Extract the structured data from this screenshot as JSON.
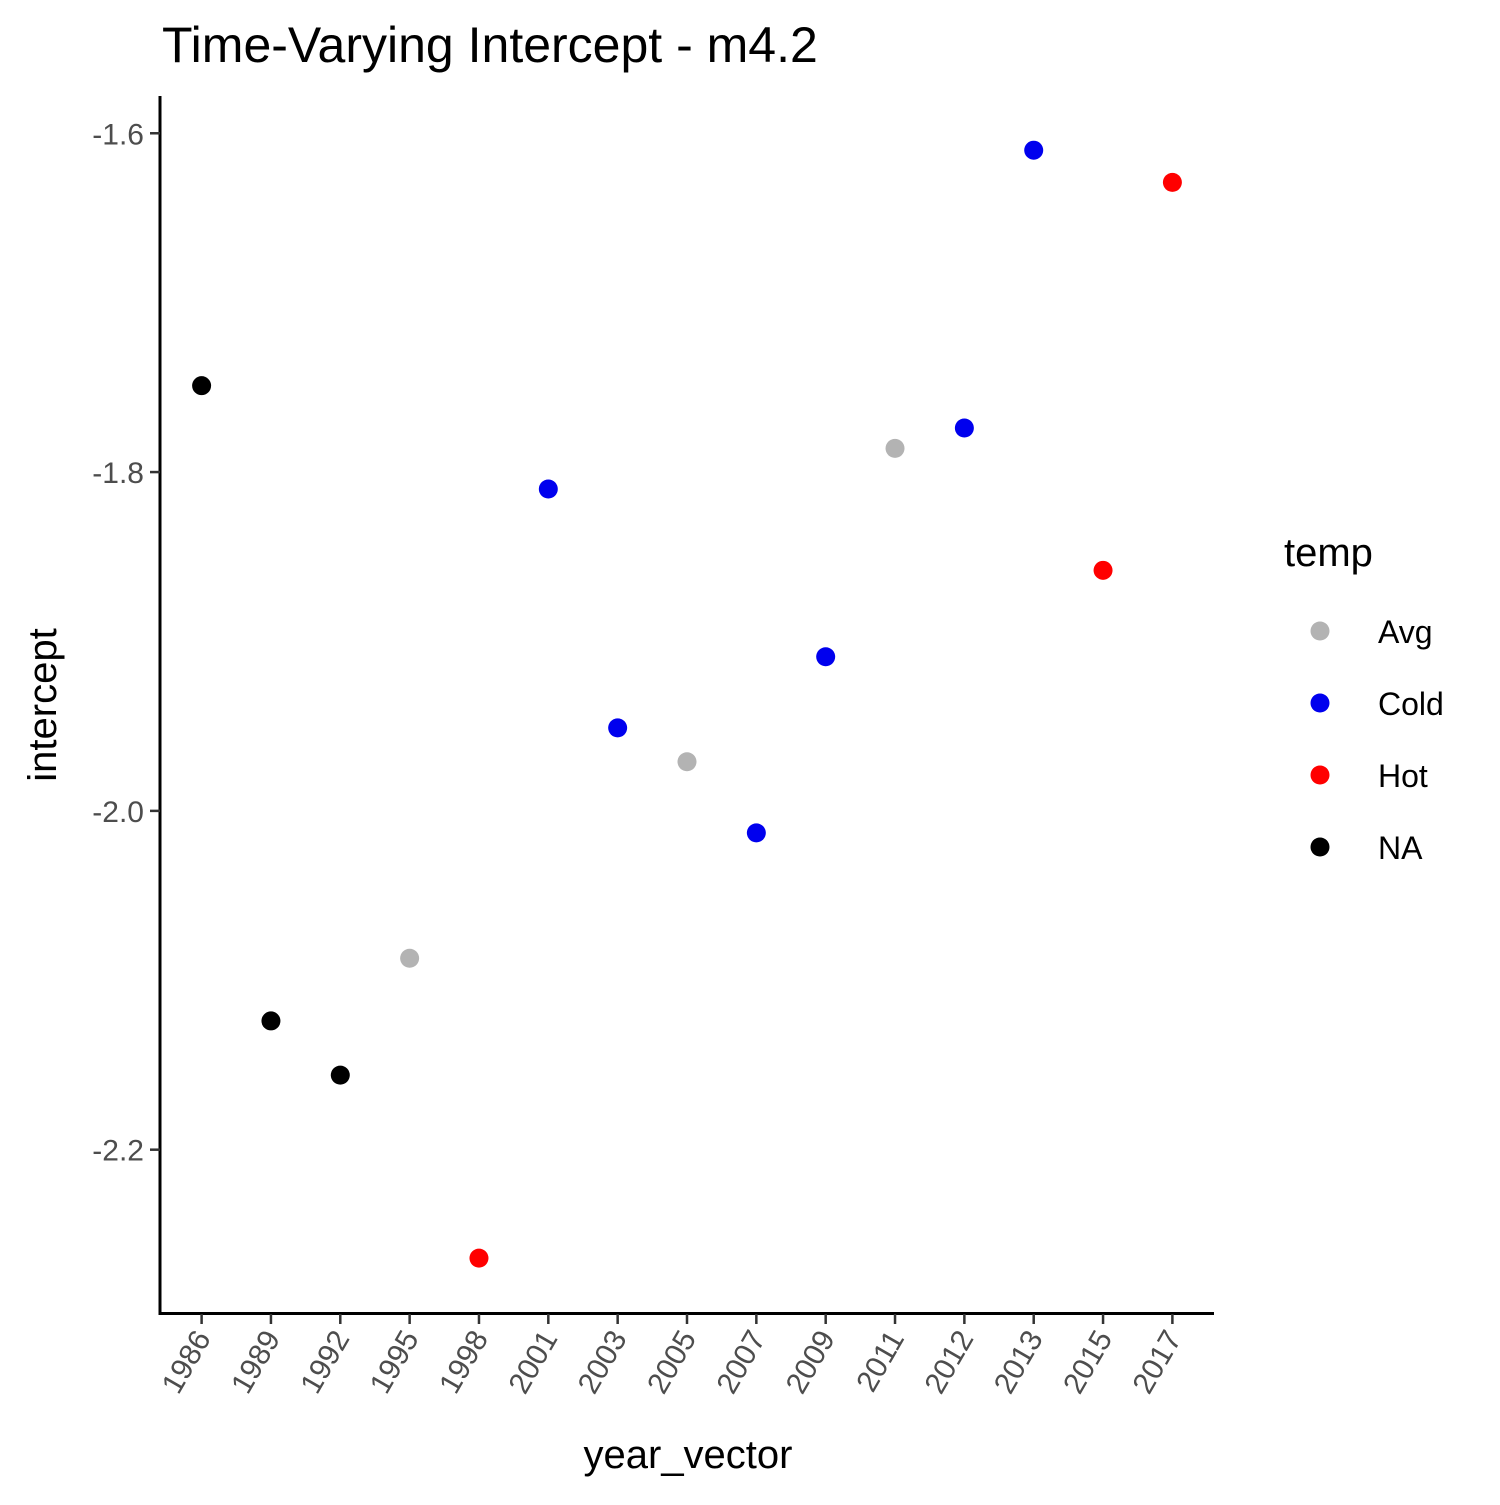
{
  "chart_data": {
    "type": "scatter",
    "title": "Time-Varying Intercept - m4.2",
    "xlabel": "year_vector",
    "ylabel": "intercept",
    "x_categories": [
      "1986",
      "1989",
      "1992",
      "1995",
      "1998",
      "2001",
      "2003",
      "2005",
      "2007",
      "2009",
      "2011",
      "2012",
      "2013",
      "2015",
      "2017"
    ],
    "y_ticks": [
      -1.6,
      -1.8,
      -2.0,
      -2.2
    ],
    "y_tick_labels": [
      "-1.6",
      "-1.8",
      "-2.0",
      "-2.2"
    ],
    "ylim": [
      -2.297,
      -1.578
    ],
    "grid": false,
    "legend": {
      "title": "temp",
      "placement": "right",
      "entries": [
        {
          "label": "Avg",
          "color": "#b3b3b3"
        },
        {
          "label": "Cold",
          "color": "#0000ee"
        },
        {
          "label": "Hot",
          "color": "#ff0000"
        },
        {
          "label": "NA",
          "color": "#000000"
        }
      ]
    },
    "points": [
      {
        "x": "1986",
        "y": -1.749,
        "temp": "NA"
      },
      {
        "x": "1989",
        "y": -2.124,
        "temp": "NA"
      },
      {
        "x": "1992",
        "y": -2.156,
        "temp": "NA"
      },
      {
        "x": "1995",
        "y": -2.087,
        "temp": "Avg"
      },
      {
        "x": "1998",
        "y": -2.264,
        "temp": "Hot"
      },
      {
        "x": "2001",
        "y": -1.81,
        "temp": "Cold"
      },
      {
        "x": "2003",
        "y": -1.951,
        "temp": "Cold"
      },
      {
        "x": "2005",
        "y": -1.971,
        "temp": "Avg"
      },
      {
        "x": "2007",
        "y": -2.013,
        "temp": "Cold"
      },
      {
        "x": "2009",
        "y": -1.909,
        "temp": "Cold"
      },
      {
        "x": "2011",
        "y": -1.786,
        "temp": "Avg"
      },
      {
        "x": "2012",
        "y": -1.774,
        "temp": "Cold"
      },
      {
        "x": "2013",
        "y": -1.61,
        "temp": "Cold"
      },
      {
        "x": "2015",
        "y": -1.858,
        "temp": "Hot"
      },
      {
        "x": "2017",
        "y": -1.629,
        "temp": "Hot"
      }
    ]
  }
}
